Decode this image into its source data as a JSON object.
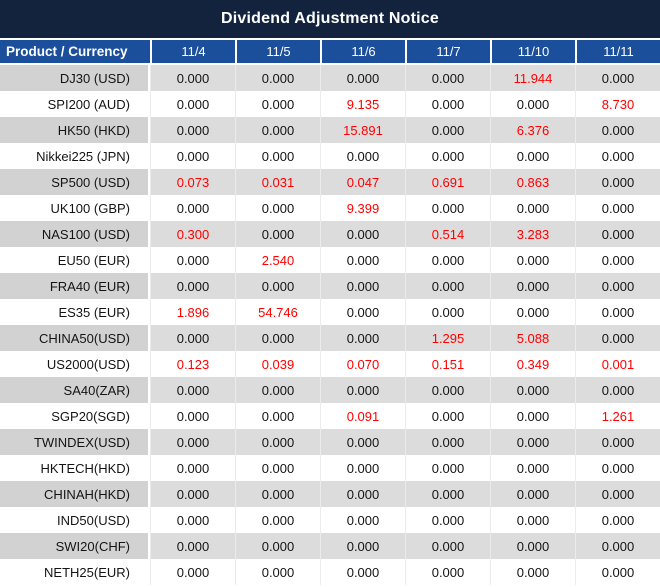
{
  "title": "Dividend Adjustment Notice",
  "table": {
    "product_header": "Product / Currency",
    "date_headers": [
      "11/4",
      "11/5",
      "11/6",
      "11/7",
      "11/10",
      "11/11"
    ],
    "rows": [
      {
        "product": "DJ30 (USD)",
        "values": [
          "0.000",
          "0.000",
          "0.000",
          "0.000",
          "11.944",
          "0.000"
        ],
        "red": [
          0,
          0,
          0,
          0,
          1,
          0
        ]
      },
      {
        "product": "SPI200 (AUD)",
        "values": [
          "0.000",
          "0.000",
          "9.135",
          "0.000",
          "0.000",
          "8.730"
        ],
        "red": [
          0,
          0,
          1,
          0,
          0,
          1
        ]
      },
      {
        "product": "HK50 (HKD)",
        "values": [
          "0.000",
          "0.000",
          "15.891",
          "0.000",
          "6.376",
          "0.000"
        ],
        "red": [
          0,
          0,
          1,
          0,
          1,
          0
        ]
      },
      {
        "product": "Nikkei225 (JPN)",
        "values": [
          "0.000",
          "0.000",
          "0.000",
          "0.000",
          "0.000",
          "0.000"
        ],
        "red": [
          0,
          0,
          0,
          0,
          0,
          0
        ]
      },
      {
        "product": "SP500 (USD)",
        "values": [
          "0.073",
          "0.031",
          "0.047",
          "0.691",
          "0.863",
          "0.000"
        ],
        "red": [
          1,
          1,
          1,
          1,
          1,
          0
        ]
      },
      {
        "product": "UK100 (GBP)",
        "values": [
          "0.000",
          "0.000",
          "9.399",
          "0.000",
          "0.000",
          "0.000"
        ],
        "red": [
          0,
          0,
          1,
          0,
          0,
          0
        ]
      },
      {
        "product": "NAS100 (USD)",
        "values": [
          "0.300",
          "0.000",
          "0.000",
          "0.514",
          "3.283",
          "0.000"
        ],
        "red": [
          1,
          0,
          0,
          1,
          1,
          0
        ]
      },
      {
        "product": "EU50 (EUR)",
        "values": [
          "0.000",
          "2.540",
          "0.000",
          "0.000",
          "0.000",
          "0.000"
        ],
        "red": [
          0,
          1,
          0,
          0,
          0,
          0
        ]
      },
      {
        "product": "FRA40 (EUR)",
        "values": [
          "0.000",
          "0.000",
          "0.000",
          "0.000",
          "0.000",
          "0.000"
        ],
        "red": [
          0,
          0,
          0,
          0,
          0,
          0
        ]
      },
      {
        "product": "ES35 (EUR)",
        "values": [
          "1.896",
          "54.746",
          "0.000",
          "0.000",
          "0.000",
          "0.000"
        ],
        "red": [
          1,
          1,
          0,
          0,
          0,
          0
        ]
      },
      {
        "product": "CHINA50(USD)",
        "values": [
          "0.000",
          "0.000",
          "0.000",
          "1.295",
          "5.088",
          "0.000"
        ],
        "red": [
          0,
          0,
          0,
          1,
          1,
          0
        ]
      },
      {
        "product": "US2000(USD)",
        "values": [
          "0.123",
          "0.039",
          "0.070",
          "0.151",
          "0.349",
          "0.001"
        ],
        "red": [
          1,
          1,
          1,
          1,
          1,
          1
        ]
      },
      {
        "product": "SA40(ZAR)",
        "values": [
          "0.000",
          "0.000",
          "0.000",
          "0.000",
          "0.000",
          "0.000"
        ],
        "red": [
          0,
          0,
          0,
          0,
          0,
          0
        ]
      },
      {
        "product": "SGP20(SGD)",
        "values": [
          "0.000",
          "0.000",
          "0.091",
          "0.000",
          "0.000",
          "1.261"
        ],
        "red": [
          0,
          0,
          1,
          0,
          0,
          1
        ]
      },
      {
        "product": "TWINDEX(USD)",
        "values": [
          "0.000",
          "0.000",
          "0.000",
          "0.000",
          "0.000",
          "0.000"
        ],
        "red": [
          0,
          0,
          0,
          0,
          0,
          0
        ]
      },
      {
        "product": "HKTECH(HKD)",
        "values": [
          "0.000",
          "0.000",
          "0.000",
          "0.000",
          "0.000",
          "0.000"
        ],
        "red": [
          0,
          0,
          0,
          0,
          0,
          0
        ]
      },
      {
        "product": "CHINAH(HKD)",
        "values": [
          "0.000",
          "0.000",
          "0.000",
          "0.000",
          "0.000",
          "0.000"
        ],
        "red": [
          0,
          0,
          0,
          0,
          0,
          0
        ]
      },
      {
        "product": "IND50(USD)",
        "values": [
          "0.000",
          "0.000",
          "0.000",
          "0.000",
          "0.000",
          "0.000"
        ],
        "red": [
          0,
          0,
          0,
          0,
          0,
          0
        ]
      },
      {
        "product": "SWI20(CHF)",
        "values": [
          "0.000",
          "0.000",
          "0.000",
          "0.000",
          "0.000",
          "0.000"
        ],
        "red": [
          0,
          0,
          0,
          0,
          0,
          0
        ]
      },
      {
        "product": "NETH25(EUR)",
        "values": [
          "0.000",
          "0.000",
          "0.000",
          "0.000",
          "0.000",
          "0.000"
        ],
        "red": [
          0,
          0,
          0,
          0,
          0,
          0
        ]
      }
    ]
  },
  "colors": {
    "title_bg": "#13233e",
    "header_bg": "#1b4e9b",
    "gray_row_product": "#d2d2d2",
    "gray_row_data": "#dcdcdc",
    "value_red": "#ff0000",
    "text_black": "#141414"
  }
}
